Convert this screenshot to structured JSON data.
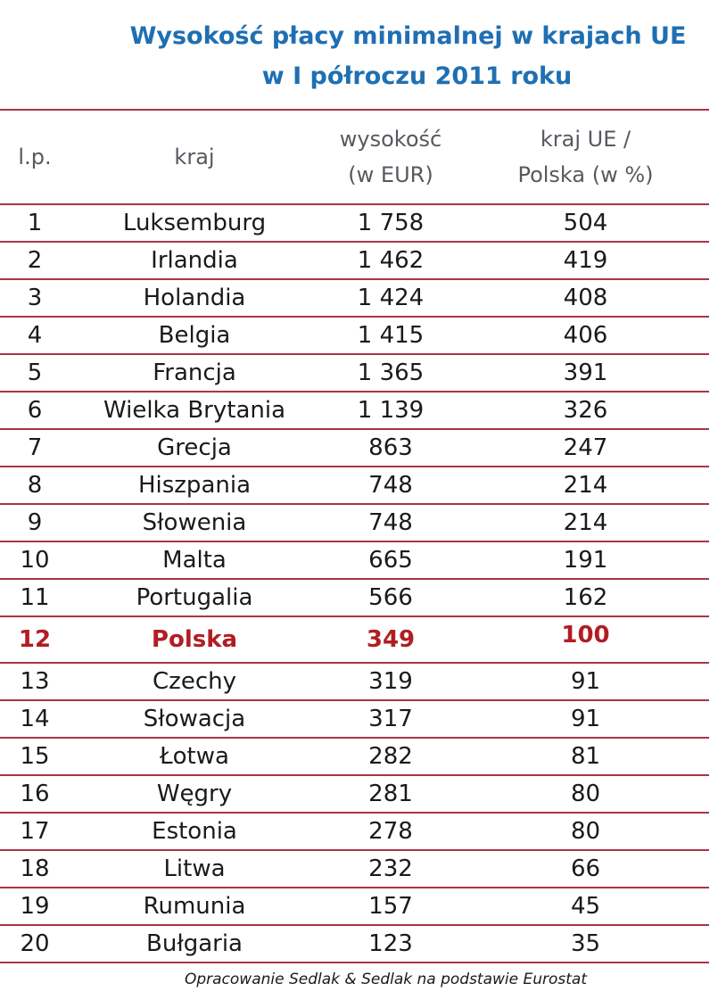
{
  "title": {
    "line1": "Wysokość płacy minimalnej w krajach UE",
    "line2": "w I półroczu 2011 roku"
  },
  "table": {
    "headers": {
      "lp": "l.p.",
      "country": "kraj",
      "amount_line1": "wysokość",
      "amount_line2": "(w EUR)",
      "ratio_line1": "kraj UE /",
      "ratio_line2": "Polska (w %)"
    },
    "rows": [
      {
        "lp": "1",
        "country": "Luksemburg",
        "amount": "1 758",
        "ratio": "504"
      },
      {
        "lp": "2",
        "country": "Irlandia",
        "amount": "1 462",
        "ratio": "419"
      },
      {
        "lp": "3",
        "country": "Holandia",
        "amount": "1 424",
        "ratio": "408"
      },
      {
        "lp": "4",
        "country": "Belgia",
        "amount": "1 415",
        "ratio": "406"
      },
      {
        "lp": "5",
        "country": "Francja",
        "amount": "1 365",
        "ratio": "391"
      },
      {
        "lp": "6",
        "country": "Wielka Brytania",
        "amount": "1 139",
        "ratio": "326"
      },
      {
        "lp": "7",
        "country": "Grecja",
        "amount": "863",
        "ratio": "247"
      },
      {
        "lp": "8",
        "country": "Hiszpania",
        "amount": "748",
        "ratio": "214"
      },
      {
        "lp": "9",
        "country": "Słowenia",
        "amount": "748",
        "ratio": "214"
      },
      {
        "lp": "10",
        "country": "Malta",
        "amount": "665",
        "ratio": "191"
      },
      {
        "lp": "11",
        "country": "Portugalia",
        "amount": "566",
        "ratio": "162"
      },
      {
        "lp": "12",
        "country": "Polska",
        "amount": "349",
        "ratio": "100",
        "highlight": true
      },
      {
        "lp": "13",
        "country": "Czechy",
        "amount": "319",
        "ratio": "91"
      },
      {
        "lp": "14",
        "country": "Słowacja",
        "amount": "317",
        "ratio": "91"
      },
      {
        "lp": "15",
        "country": "Łotwa",
        "amount": "282",
        "ratio": "81"
      },
      {
        "lp": "16",
        "country": "Węgry",
        "amount": "281",
        "ratio": "80"
      },
      {
        "lp": "17",
        "country": "Estonia",
        "amount": "278",
        "ratio": "80"
      },
      {
        "lp": "18",
        "country": "Litwa",
        "amount": "232",
        "ratio": "66"
      },
      {
        "lp": "19",
        "country": "Rumunia",
        "amount": "157",
        "ratio": "45"
      },
      {
        "lp": "20",
        "country": "Bułgaria",
        "amount": "123",
        "ratio": "35"
      }
    ]
  },
  "source": "Opracowanie Sedlak & Sedlak na podstawie Eurostat",
  "colors": {
    "title": "#1f6fb2",
    "rule": "#a9344a",
    "highlight": "#b01e24"
  }
}
